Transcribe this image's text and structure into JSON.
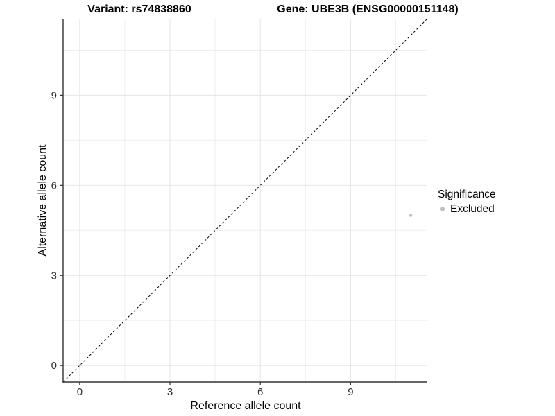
{
  "chart_data": {
    "type": "scatter",
    "title_left": "Variant: rs74838860",
    "title_right": "Gene: UBE3B (ENSG00000151148)",
    "xlabel": "Reference allele count",
    "ylabel": "Alternative allele count",
    "xlim": [
      -0.55,
      11.55
    ],
    "ylim": [
      -0.55,
      11.55
    ],
    "xticks": [
      0,
      3,
      6,
      9
    ],
    "yticks": [
      0,
      3,
      6,
      9
    ],
    "xminor": [
      1.5,
      4.5,
      7.5,
      10.5
    ],
    "yminor": [
      1.5,
      4.5,
      7.5,
      10.5
    ],
    "grid": "major+minor",
    "points": [
      {
        "x": 11,
        "y": 5,
        "series": "Excluded",
        "color": "#c3c3c3",
        "radius": 2.2
      }
    ],
    "identity_line": {
      "style": "dashed",
      "color": "#000000"
    },
    "legend": {
      "title": "Significance",
      "position": "right",
      "entries": [
        {
          "label": "Excluded",
          "color": "#bebebe"
        }
      ]
    },
    "colors": {
      "grid_major": "#e4e4e4",
      "grid_minor": "#efefef",
      "axis_line": "#333333",
      "tick_text": "#303030",
      "background": "#ffffff"
    }
  }
}
